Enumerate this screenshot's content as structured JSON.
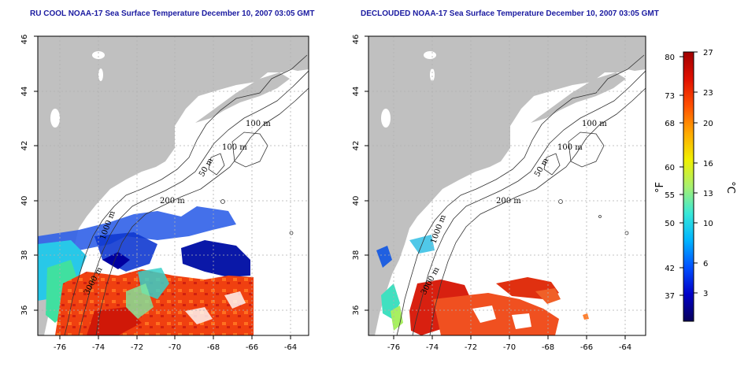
{
  "panels": [
    {
      "title": "RU COOL NOAA-17 Sea Surface Temperature December 10, 2007 03:05 GMT",
      "contour_labels": [
        "100 m",
        "100 m",
        "50 m",
        "200 m",
        "1000 m",
        "3000 m"
      ]
    },
    {
      "title": "DECLOUDED NOAA-17 Sea Surface Temperature December 10, 2007 03:05 GMT",
      "contour_labels": [
        "100 m",
        "100 m",
        "50 m",
        "200 m",
        "1000 m",
        "3000 m"
      ]
    }
  ],
  "axes": {
    "lon_ticks": [
      "-76",
      "-74",
      "-72",
      "-70",
      "-68",
      "-66",
      "-64"
    ],
    "lat_ticks": [
      "36",
      "38",
      "40",
      "42",
      "44",
      "46"
    ]
  },
  "colorbar": {
    "fahrenheit_unit": "°F",
    "celsius_unit": "°C",
    "fahrenheit_ticks": [
      "80",
      "73",
      "68",
      "60",
      "55",
      "50",
      "42",
      "37"
    ],
    "celsius_ticks": [
      "27",
      "23",
      "20",
      "16",
      "13",
      "10",
      "6",
      "3"
    ],
    "colors": [
      "#08005a",
      "#0000c8",
      "#0050ff",
      "#00b4ff",
      "#38e8d8",
      "#a8f070",
      "#f0f000",
      "#ffa800",
      "#ff5000",
      "#e01000",
      "#a00000"
    ]
  },
  "colors": {
    "land": "#c0c0c0",
    "title": "#1a1aa0"
  }
}
